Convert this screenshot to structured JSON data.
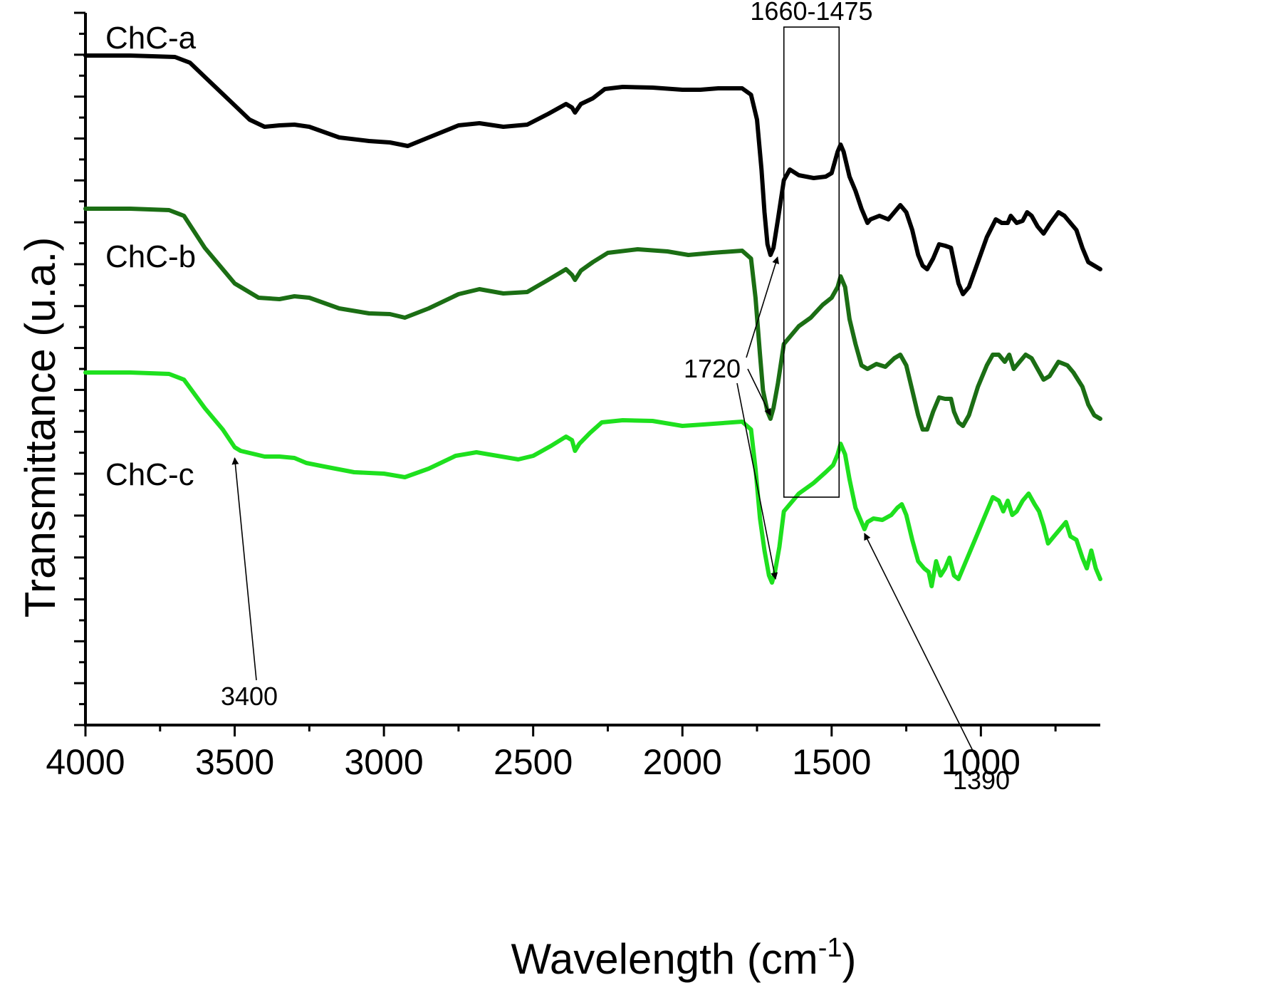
{
  "chart_data": {
    "type": "line",
    "title": "",
    "xlabel": "Wavelength (cm",
    "xlabel_sup": "-1",
    "xlabel_close": ")",
    "ylabel": "Transmittance (u.a.)",
    "xlim": [
      4000,
      600
    ],
    "ylim": [
      0,
      100
    ],
    "x_reversed": true,
    "xticks": [
      4000,
      3500,
      3000,
      2500,
      2000,
      1500,
      1000
    ],
    "grid": false,
    "series": [
      {
        "name": "ChC-a",
        "color": "#000000",
        "points": [
          [
            4000,
            94.0
          ],
          [
            3850,
            94.0
          ],
          [
            3700,
            93.8
          ],
          [
            3650,
            93.0
          ],
          [
            3600,
            91.0
          ],
          [
            3500,
            87.0
          ],
          [
            3450,
            85.0
          ],
          [
            3400,
            84.0
          ],
          [
            3350,
            84.2
          ],
          [
            3300,
            84.3
          ],
          [
            3250,
            84.0
          ],
          [
            3150,
            82.5
          ],
          [
            3050,
            82.0
          ],
          [
            2980,
            81.8
          ],
          [
            2920,
            81.3
          ],
          [
            2850,
            82.5
          ],
          [
            2750,
            84.2
          ],
          [
            2680,
            84.5
          ],
          [
            2600,
            84.0
          ],
          [
            2520,
            84.3
          ],
          [
            2450,
            85.8
          ],
          [
            2390,
            87.2
          ],
          [
            2370,
            86.7
          ],
          [
            2360,
            86.0
          ],
          [
            2340,
            87.2
          ],
          [
            2300,
            88.0
          ],
          [
            2260,
            89.3
          ],
          [
            2200,
            89.6
          ],
          [
            2100,
            89.5
          ],
          [
            2000,
            89.2
          ],
          [
            1940,
            89.2
          ],
          [
            1880,
            89.4
          ],
          [
            1800,
            89.4
          ],
          [
            1770,
            88.5
          ],
          [
            1750,
            85.0
          ],
          [
            1735,
            78.0
          ],
          [
            1725,
            72.0
          ],
          [
            1715,
            67.5
          ],
          [
            1705,
            66.0
          ],
          [
            1695,
            67.0
          ],
          [
            1680,
            71.0
          ],
          [
            1660,
            76.5
          ],
          [
            1640,
            78.0
          ],
          [
            1610,
            77.2
          ],
          [
            1560,
            76.8
          ],
          [
            1520,
            77.0
          ],
          [
            1500,
            77.5
          ],
          [
            1480,
            80.5
          ],
          [
            1470,
            81.5
          ],
          [
            1460,
            80.5
          ],
          [
            1440,
            77.0
          ],
          [
            1420,
            75.0
          ],
          [
            1400,
            72.5
          ],
          [
            1380,
            70.5
          ],
          [
            1370,
            71.0
          ],
          [
            1340,
            71.5
          ],
          [
            1310,
            71.0
          ],
          [
            1290,
            72.0
          ],
          [
            1270,
            73.0
          ],
          [
            1250,
            72.0
          ],
          [
            1230,
            69.5
          ],
          [
            1210,
            66.0
          ],
          [
            1195,
            64.5
          ],
          [
            1180,
            64.0
          ],
          [
            1160,
            65.5
          ],
          [
            1140,
            67.5
          ],
          [
            1120,
            67.3
          ],
          [
            1100,
            67.0
          ],
          [
            1090,
            65.0
          ],
          [
            1075,
            62.0
          ],
          [
            1060,
            60.5
          ],
          [
            1040,
            61.5
          ],
          [
            1010,
            65.0
          ],
          [
            980,
            68.5
          ],
          [
            950,
            71.0
          ],
          [
            930,
            70.5
          ],
          [
            910,
            70.5
          ],
          [
            900,
            71.5
          ],
          [
            880,
            70.5
          ],
          [
            860,
            70.8
          ],
          [
            845,
            72.0
          ],
          [
            830,
            71.5
          ],
          [
            810,
            70.0
          ],
          [
            790,
            69.0
          ],
          [
            770,
            70.3
          ],
          [
            740,
            72.0
          ],
          [
            720,
            71.5
          ],
          [
            700,
            70.5
          ],
          [
            680,
            69.5
          ],
          [
            660,
            67.0
          ],
          [
            640,
            65.0
          ],
          [
            620,
            64.5
          ],
          [
            600,
            64.0
          ]
        ]
      },
      {
        "name": "ChC-b",
        "color": "#1b6e14",
        "points": [
          [
            4000,
            72.5
          ],
          [
            3850,
            72.5
          ],
          [
            3720,
            72.3
          ],
          [
            3670,
            71.5
          ],
          [
            3600,
            67.0
          ],
          [
            3500,
            62.0
          ],
          [
            3420,
            60.0
          ],
          [
            3350,
            59.8
          ],
          [
            3300,
            60.2
          ],
          [
            3250,
            60.0
          ],
          [
            3150,
            58.5
          ],
          [
            3050,
            57.8
          ],
          [
            2980,
            57.7
          ],
          [
            2930,
            57.2
          ],
          [
            2850,
            58.5
          ],
          [
            2750,
            60.5
          ],
          [
            2680,
            61.2
          ],
          [
            2600,
            60.6
          ],
          [
            2520,
            60.8
          ],
          [
            2450,
            62.5
          ],
          [
            2390,
            64.0
          ],
          [
            2370,
            63.2
          ],
          [
            2360,
            62.5
          ],
          [
            2340,
            63.8
          ],
          [
            2300,
            65.0
          ],
          [
            2250,
            66.3
          ],
          [
            2150,
            66.8
          ],
          [
            2050,
            66.5
          ],
          [
            1980,
            66.0
          ],
          [
            1900,
            66.3
          ],
          [
            1800,
            66.6
          ],
          [
            1770,
            65.5
          ],
          [
            1755,
            60.0
          ],
          [
            1740,
            52.0
          ],
          [
            1730,
            47.0
          ],
          [
            1715,
            44.0
          ],
          [
            1705,
            43.0
          ],
          [
            1695,
            44.5
          ],
          [
            1680,
            48.0
          ],
          [
            1660,
            53.5
          ],
          [
            1640,
            54.5
          ],
          [
            1610,
            56.0
          ],
          [
            1570,
            57.2
          ],
          [
            1530,
            59.0
          ],
          [
            1500,
            60.0
          ],
          [
            1480,
            61.5
          ],
          [
            1470,
            63.0
          ],
          [
            1455,
            61.5
          ],
          [
            1440,
            57.0
          ],
          [
            1420,
            53.5
          ],
          [
            1400,
            50.5
          ],
          [
            1380,
            50.0
          ],
          [
            1350,
            50.7
          ],
          [
            1320,
            50.3
          ],
          [
            1290,
            51.5
          ],
          [
            1270,
            52.0
          ],
          [
            1250,
            50.5
          ],
          [
            1230,
            47.0
          ],
          [
            1210,
            43.5
          ],
          [
            1195,
            41.5
          ],
          [
            1180,
            41.5
          ],
          [
            1160,
            44.0
          ],
          [
            1140,
            46.0
          ],
          [
            1120,
            45.8
          ],
          [
            1100,
            45.8
          ],
          [
            1090,
            44.0
          ],
          [
            1075,
            42.5
          ],
          [
            1060,
            42.0
          ],
          [
            1040,
            43.5
          ],
          [
            1010,
            47.5
          ],
          [
            980,
            50.5
          ],
          [
            960,
            52.0
          ],
          [
            940,
            52.0
          ],
          [
            920,
            51.0
          ],
          [
            905,
            52.0
          ],
          [
            890,
            50.0
          ],
          [
            870,
            51.0
          ],
          [
            850,
            52.0
          ],
          [
            830,
            51.5
          ],
          [
            810,
            50.0
          ],
          [
            790,
            48.5
          ],
          [
            770,
            49.0
          ],
          [
            740,
            51.0
          ],
          [
            710,
            50.5
          ],
          [
            690,
            49.5
          ],
          [
            660,
            47.5
          ],
          [
            640,
            45.0
          ],
          [
            620,
            43.5
          ],
          [
            600,
            43.0
          ]
        ]
      },
      {
        "name": "ChC-c",
        "color": "#1ee01e",
        "points": [
          [
            4000,
            49.5
          ],
          [
            3850,
            49.5
          ],
          [
            3720,
            49.3
          ],
          [
            3670,
            48.5
          ],
          [
            3600,
            44.5
          ],
          [
            3540,
            41.5
          ],
          [
            3500,
            39.0
          ],
          [
            3480,
            38.5
          ],
          [
            3400,
            37.7
          ],
          [
            3350,
            37.7
          ],
          [
            3300,
            37.5
          ],
          [
            3260,
            36.8
          ],
          [
            3200,
            36.3
          ],
          [
            3100,
            35.5
          ],
          [
            3000,
            35.3
          ],
          [
            2930,
            34.8
          ],
          [
            2850,
            36.0
          ],
          [
            2760,
            37.8
          ],
          [
            2690,
            38.3
          ],
          [
            2620,
            37.8
          ],
          [
            2550,
            37.3
          ],
          [
            2500,
            37.8
          ],
          [
            2440,
            39.2
          ],
          [
            2390,
            40.5
          ],
          [
            2370,
            40.0
          ],
          [
            2360,
            38.5
          ],
          [
            2345,
            39.5
          ],
          [
            2310,
            41.0
          ],
          [
            2270,
            42.5
          ],
          [
            2200,
            42.8
          ],
          [
            2100,
            42.7
          ],
          [
            2000,
            42.0
          ],
          [
            1930,
            42.2
          ],
          [
            1800,
            42.6
          ],
          [
            1770,
            41.5
          ],
          [
            1755,
            36.0
          ],
          [
            1740,
            29.0
          ],
          [
            1725,
            24.5
          ],
          [
            1710,
            21.0
          ],
          [
            1700,
            20.0
          ],
          [
            1690,
            21.5
          ],
          [
            1675,
            25.0
          ],
          [
            1660,
            30.0
          ],
          [
            1640,
            31.0
          ],
          [
            1610,
            32.5
          ],
          [
            1560,
            34.0
          ],
          [
            1520,
            35.5
          ],
          [
            1495,
            36.5
          ],
          [
            1480,
            38.0
          ],
          [
            1470,
            39.5
          ],
          [
            1455,
            38.0
          ],
          [
            1440,
            34.5
          ],
          [
            1420,
            30.5
          ],
          [
            1400,
            28.5
          ],
          [
            1390,
            27.5
          ],
          [
            1380,
            28.5
          ],
          [
            1360,
            29.0
          ],
          [
            1330,
            28.8
          ],
          [
            1300,
            29.5
          ],
          [
            1280,
            30.5
          ],
          [
            1265,
            31.0
          ],
          [
            1250,
            29.5
          ],
          [
            1230,
            26.0
          ],
          [
            1210,
            23.0
          ],
          [
            1190,
            22.0
          ],
          [
            1175,
            21.5
          ],
          [
            1165,
            19.5
          ],
          [
            1150,
            23.0
          ],
          [
            1135,
            21.0
          ],
          [
            1120,
            22.0
          ],
          [
            1105,
            23.5
          ],
          [
            1090,
            21.0
          ],
          [
            1075,
            20.5
          ],
          [
            1060,
            22.0
          ],
          [
            1040,
            24.0
          ],
          [
            1010,
            27.0
          ],
          [
            985,
            29.5
          ],
          [
            960,
            32.0
          ],
          [
            940,
            31.5
          ],
          [
            925,
            30.0
          ],
          [
            910,
            31.5
          ],
          [
            895,
            29.5
          ],
          [
            880,
            30.0
          ],
          [
            860,
            31.5
          ],
          [
            840,
            32.5
          ],
          [
            820,
            31.0
          ],
          [
            805,
            30.0
          ],
          [
            790,
            28.0
          ],
          [
            775,
            25.5
          ],
          [
            755,
            26.5
          ],
          [
            735,
            27.5
          ],
          [
            715,
            28.5
          ],
          [
            700,
            26.5
          ],
          [
            680,
            26.0
          ],
          [
            660,
            23.5
          ],
          [
            645,
            22.0
          ],
          [
            630,
            24.5
          ],
          [
            615,
            22.0
          ],
          [
            600,
            20.5
          ]
        ]
      }
    ],
    "annotations": [
      {
        "label": "1660-1475",
        "type": "box",
        "x_range": [
          1660,
          1475
        ],
        "y_range": [
          32,
          98
        ]
      },
      {
        "label": "1720",
        "type": "arrows",
        "targets": [
          [
            1705,
            66.0
          ],
          [
            1705,
            43.0
          ],
          [
            1700,
            20.0
          ]
        ]
      },
      {
        "label": "3400",
        "type": "arrow",
        "target": [
          3500,
          38.5
        ]
      },
      {
        "label": "1390",
        "type": "arrow",
        "target": [
          1390,
          27.5
        ]
      }
    ]
  }
}
